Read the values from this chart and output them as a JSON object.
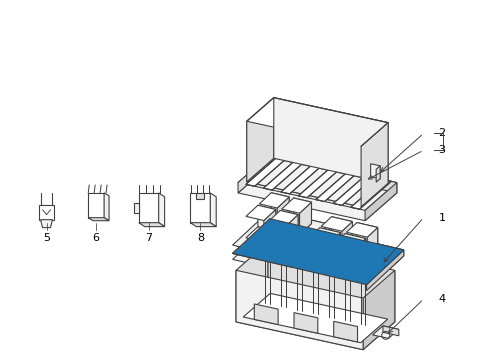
{
  "background_color": "#ffffff",
  "line_color": "#404040",
  "line_width": 0.8,
  "label_color": "#000000",
  "label_fontsize": 8,
  "fig_width": 4.89,
  "fig_height": 3.6,
  "dpi": 100
}
